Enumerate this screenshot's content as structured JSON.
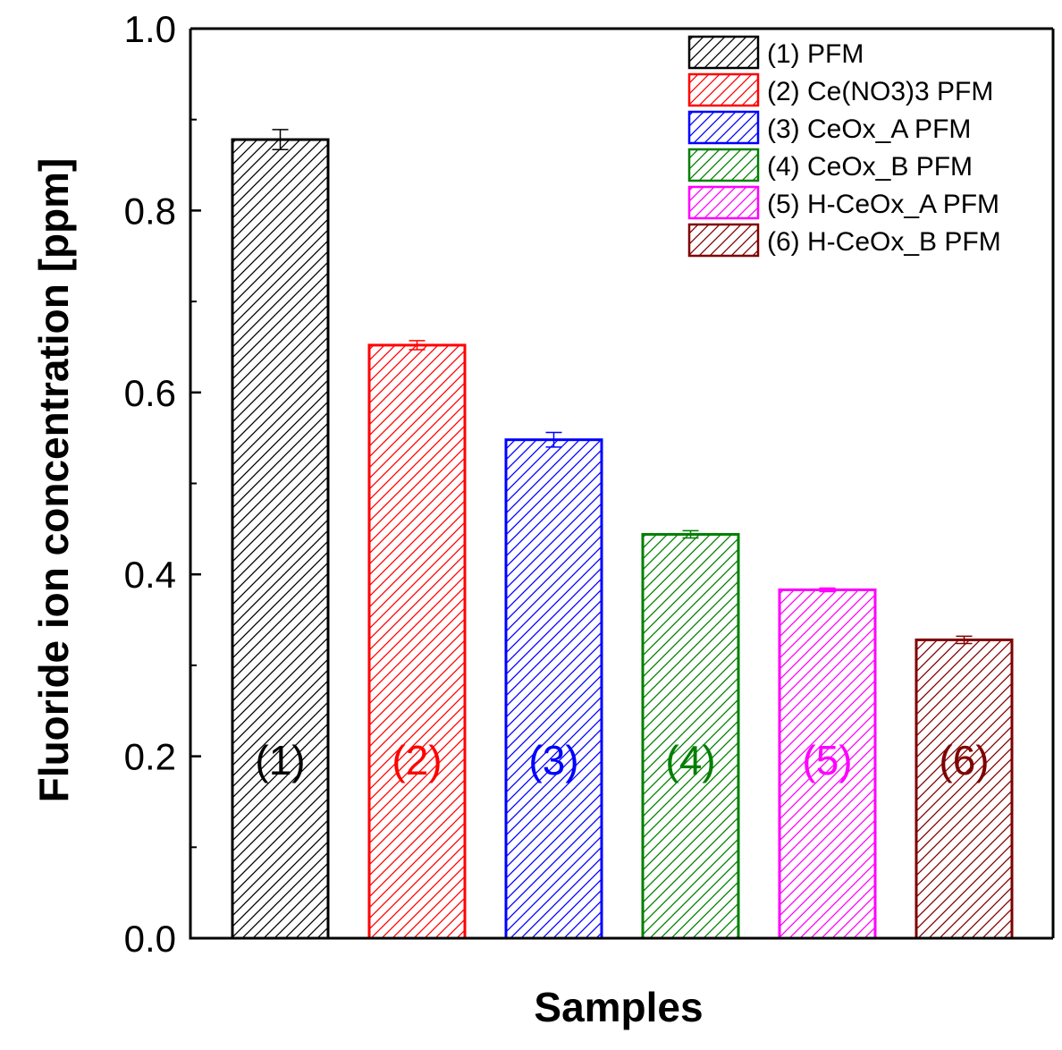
{
  "chart_data": {
    "type": "bar",
    "title": "",
    "xlabel": "Samples",
    "ylabel": "Fluoride ion concentration [ppm]",
    "ylim": [
      0.0,
      1.0
    ],
    "yticks": [
      0.0,
      0.2,
      0.4,
      0.6,
      0.8,
      1.0
    ],
    "ytick_labels": [
      "0.0",
      "0.2",
      "0.4",
      "0.6",
      "0.8",
      "1.0"
    ],
    "grid": false,
    "legend_position": "top-right",
    "categories": [
      "(1)",
      "(2)",
      "(3)",
      "(4)",
      "(5)",
      "(6)"
    ],
    "values": [
      0.878,
      0.652,
      0.548,
      0.444,
      0.383,
      0.328
    ],
    "errors": [
      0.011,
      0.005,
      0.008,
      0.004,
      0.002,
      0.004
    ],
    "series_names": [
      "(1) PFM",
      "(2) Ce(NO3)3 PFM",
      "(3) CeOx_A PFM",
      "(4) CeOx_B PFM",
      "(5) H-CeOx_A PFM",
      "(6) H-CeOx_B PFM"
    ],
    "colors": [
      "#000000",
      "#ff0000",
      "#0000ff",
      "#007f00",
      "#ff00ff",
      "#7f0000"
    ]
  }
}
